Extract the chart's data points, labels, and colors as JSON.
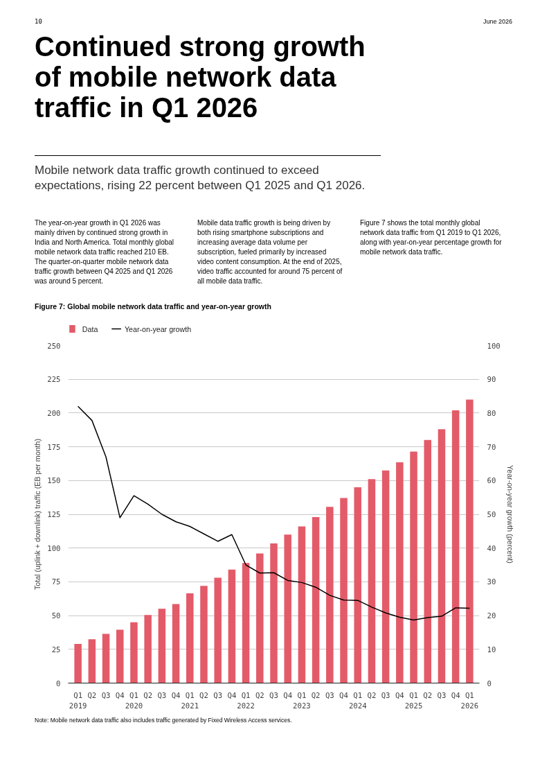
{
  "chart_data": {
    "type": "bar",
    "title": "Continued strong growth of mobile network data traffic in Q1 2026",
    "subtitle": "Mobile network data traffic growth continued to exceed expectations, rising 22 percent between Q1 2025 and Q1 2026.",
    "annotations": [
      "10",
      "June 2026",
      "The year-on-year growth in Q1 2026 was mainly driven by continued strong growth in India and North America. Total monthly global mobile network data traffic reached 210 EB. The quarter-on-quarter mobile network data traffic growth between Q4 2025 and Q1 2026 was around 5 percent.",
      "Mobile data traffic growth is being driven by both rising smartphone subscriptions and increasing average data volume per subscription, fueled primarily by increased video content consumption. At the end of 2025, video traffic accounted for around 75 percent of all mobile data traffic.",
      "Figure 7 shows the total monthly global network data traffic from Q1 2019 to Q1 2026, along with year-on-year percentage growth for mobile network data traffic.",
      "Figure 7: Global mobile network data traffic and year-on-year growth",
      "Note: Mobile network data traffic also includes traffic generated by Fixed Wireless Access services."
    ],
    "ylabel": "Total (uplink + downlink) traffic (EB per month)",
    "y2label": "Year-on-year growth (percent)",
    "categories": [
      "Q1\n2019",
      "Q2",
      "Q3",
      "Q4",
      "Q1\n2020",
      "Q2",
      "Q3",
      "Q4",
      "Q1\n2021",
      "Q2",
      "Q3",
      "Q4",
      "Q1\n2022",
      "Q2",
      "Q3",
      "Q4",
      "Q1\n2023",
      "Q2",
      "Q3",
      "Q4",
      "Q1\n2024",
      "Q2",
      "Q3",
      "Q4",
      "Q1\n2025",
      "Q2",
      "Q3",
      "Q4",
      "Q1\n2026"
    ],
    "series": [
      {
        "name": "Data",
        "color": "#e35b69",
        "values": [
          29,
          32.5,
          36.5,
          39.5,
          45,
          50.5,
          55,
          58.5,
          66.5,
          72,
          78,
          84,
          89,
          96,
          103.5,
          110,
          116,
          123,
          130.5,
          137,
          145,
          151,
          157.5,
          163.5,
          171.5,
          180,
          188,
          202,
          210
        ]
      },
      {
        "name": "Year-on-year growth",
        "type": "line",
        "axis": "y2",
        "color": "#000000",
        "values": [
          82,
          77.8,
          67,
          49,
          55.5,
          53,
          50,
          47.8,
          46.4,
          44.2,
          42,
          44,
          35,
          32.6,
          32.7,
          30.4,
          29.8,
          28.4,
          26,
          24.6,
          24.5,
          22.5,
          20.8,
          19.5,
          18.7,
          19.4,
          19.8,
          22.3,
          22.2
        ]
      }
    ],
    "ylim": [
      0,
      250
    ],
    "yticks": [
      0,
      25,
      50,
      75,
      100,
      125,
      150,
      175,
      200,
      225,
      250
    ],
    "y2lim": [
      0,
      100
    ],
    "y2ticks": [
      0,
      10,
      20,
      30,
      40,
      50,
      60,
      70,
      80,
      90,
      100
    ],
    "grid": "y",
    "legend": "top left",
    "marker": "none",
    "line_style": "solid"
  }
}
